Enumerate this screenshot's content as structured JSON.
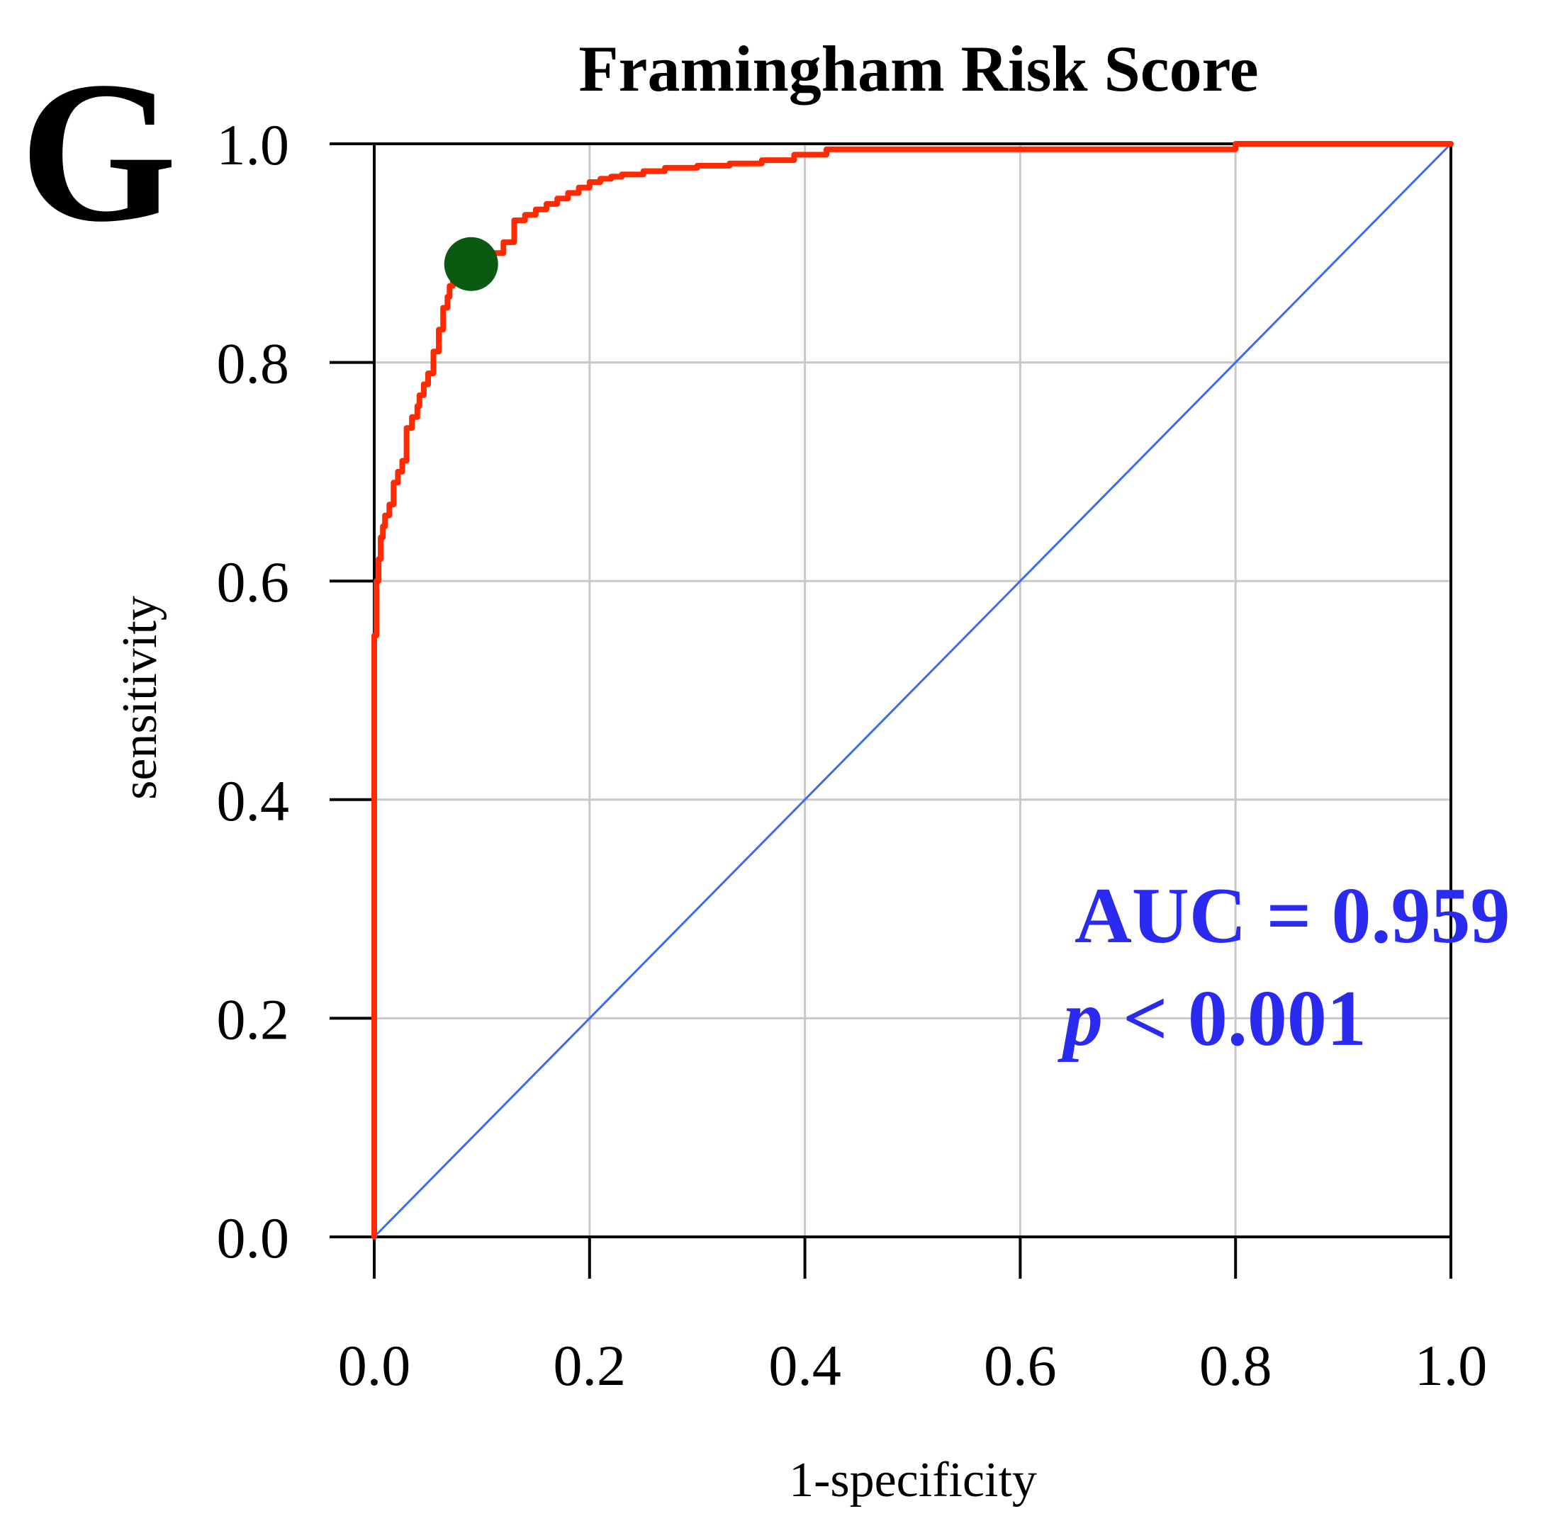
{
  "panel_label": "G",
  "colors": {
    "roc_curve": "#ff2a00",
    "reference_line": "#3b6cf0",
    "cutoff_point": "#0b5a12",
    "annotation": "#2a2af0",
    "grid": "#c8c8c8",
    "axes": "#000000"
  },
  "chart_data": {
    "type": "line",
    "title": "Framingham Risk Score",
    "xlabel": "1-specificity",
    "ylabel": "sensitivity",
    "xlim": [
      0,
      1
    ],
    "ylim": [
      0,
      1
    ],
    "grid": true,
    "x_ticks": [
      "0.0",
      "0.2",
      "0.4",
      "0.6",
      "0.8",
      "1.0"
    ],
    "y_ticks": [
      "0.0",
      "0.2",
      "0.4",
      "0.6",
      "0.8",
      "1.0"
    ],
    "x_tick_values": [
      0,
      0.2,
      0.4,
      0.6,
      0.8,
      1.0
    ],
    "y_tick_values": [
      0,
      0.2,
      0.4,
      0.6,
      0.8,
      1.0
    ],
    "series": [
      {
        "role": "roc",
        "x": [
          0.0,
          0.0,
          0.0,
          0.002,
          0.004,
          0.006,
          0.008,
          0.01,
          0.014,
          0.018,
          0.022,
          0.026,
          0.03,
          0.035,
          0.04,
          0.042,
          0.046,
          0.05,
          0.055,
          0.06,
          0.064,
          0.068,
          0.07,
          0.073,
          0.076,
          0.08,
          0.085,
          0.092,
          0.1,
          0.11,
          0.12,
          0.13,
          0.14,
          0.15,
          0.16,
          0.17,
          0.18,
          0.19,
          0.2,
          0.21,
          0.22,
          0.23,
          0.25,
          0.27,
          0.3,
          0.33,
          0.36,
          0.39,
          0.42,
          0.44,
          0.5,
          0.6,
          0.7,
          0.8,
          0.9,
          1.0
        ],
        "y": [
          0.0,
          0.2,
          0.5,
          0.55,
          0.6,
          0.62,
          0.64,
          0.65,
          0.66,
          0.67,
          0.69,
          0.7,
          0.71,
          0.74,
          0.75,
          0.76,
          0.77,
          0.78,
          0.79,
          0.81,
          0.83,
          0.85,
          0.86,
          0.87,
          0.88,
          0.89,
          0.89,
          0.89,
          0.89,
          0.895,
          0.9,
          0.91,
          0.93,
          0.935,
          0.94,
          0.945,
          0.95,
          0.955,
          0.96,
          0.965,
          0.968,
          0.97,
          0.972,
          0.975,
          0.978,
          0.98,
          0.982,
          0.985,
          0.99,
          0.995,
          0.995,
          0.995,
          0.995,
          0.995,
          1.0,
          1.0
        ]
      },
      {
        "role": "reference",
        "x": [
          0,
          1
        ],
        "y": [
          0,
          1
        ]
      }
    ],
    "cutoff_point": {
      "x": 0.09,
      "y": 0.89
    },
    "annotations": {
      "auc_text": "AUC = 0.959",
      "p_symbol": "p",
      "p_text": " < 0.001"
    }
  }
}
